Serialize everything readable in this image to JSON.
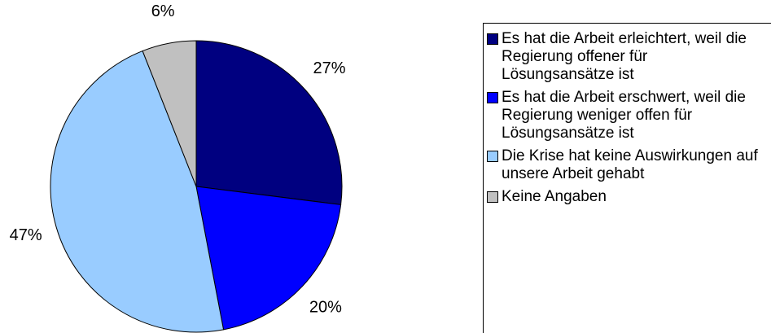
{
  "chart_data": {
    "type": "pie",
    "categories": [
      "Es hat die Arbeit erleichtert, weil die Regierung offener für Lösungsansätze ist",
      "Es hat die Arbeit erschwert, weil die Regierung weniger offen für Lösungsansätze ist",
      "Die Krise hat keine Auswirkungen auf unsere Arbeit gehabt",
      "Keine Angaben"
    ],
    "values": [
      27,
      20,
      47,
      6
    ],
    "value_labels": [
      "27%",
      "20%",
      "47%",
      "6%"
    ],
    "colors": [
      "#000080",
      "#0000ff",
      "#99ccff",
      "#c0c0c0"
    ],
    "legend": "right"
  }
}
